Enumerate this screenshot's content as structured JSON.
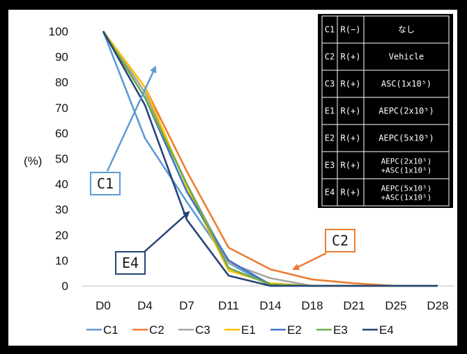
{
  "chart_data": {
    "type": "line",
    "ylabel": "(%)",
    "categories": [
      "D0",
      "D4",
      "D7",
      "D11",
      "D14",
      "D18",
      "D21",
      "D25",
      "D28"
    ],
    "ylim": [
      0,
      100
    ],
    "yticks": [
      0,
      10,
      20,
      30,
      40,
      50,
      60,
      70,
      80,
      90,
      100
    ],
    "grid": false,
    "legend_position": "bottom",
    "series": [
      {
        "name": "C1",
        "color": "#5B9BD5",
        "values": [
          100,
          58,
          33,
          9,
          0,
          0,
          0,
          0,
          0
        ]
      },
      {
        "name": "C2",
        "color": "#ED7D31",
        "values": [
          100,
          78,
          45,
          15,
          6.5,
          2.5,
          1,
          0,
          0
        ]
      },
      {
        "name": "C3",
        "color": "#A5A5A5",
        "values": [
          100,
          76,
          40,
          9,
          3,
          0,
          0,
          0,
          0
        ]
      },
      {
        "name": "E1",
        "color": "#FFC000",
        "values": [
          100,
          78,
          39,
          6,
          1,
          0,
          0,
          0,
          0
        ]
      },
      {
        "name": "E2",
        "color": "#4472C4",
        "values": [
          100,
          74,
          37,
          10,
          0.5,
          0,
          0,
          0,
          0
        ]
      },
      {
        "name": "E3",
        "color": "#70AD47",
        "values": [
          100,
          74,
          40,
          7,
          0.5,
          0,
          0,
          0,
          0
        ]
      },
      {
        "name": "E4",
        "color": "#264478",
        "values": [
          100,
          71,
          26,
          4,
          0,
          0,
          0,
          0,
          0
        ]
      }
    ],
    "annotations": [
      {
        "label": "C1",
        "color": "#5B9BD5",
        "points_to_series": "C1"
      },
      {
        "label": "C2",
        "color": "#ED7D31",
        "points_to_series": "C2"
      },
      {
        "label": "E4",
        "color": "#264478",
        "points_to_series": "E4"
      }
    ],
    "condition_table": [
      [
        "C1",
        "R(−)",
        "なし"
      ],
      [
        "C2",
        "R(+)",
        "Vehicle"
      ],
      [
        "C3",
        "R(+)",
        "ASC(1x10⁵)"
      ],
      [
        "E1",
        "R(+)",
        "AEPC(2x10⁵)"
      ],
      [
        "E2",
        "R(+)",
        "AEPC(5x10⁵)"
      ],
      [
        "E3",
        "R(+)",
        "AEPC(2x10⁵)\n+ASC(1x10⁵)"
      ],
      [
        "E4",
        "R(+)",
        "AEPC(5x10⁵)\n+ASC(1x10⁵)"
      ]
    ]
  }
}
